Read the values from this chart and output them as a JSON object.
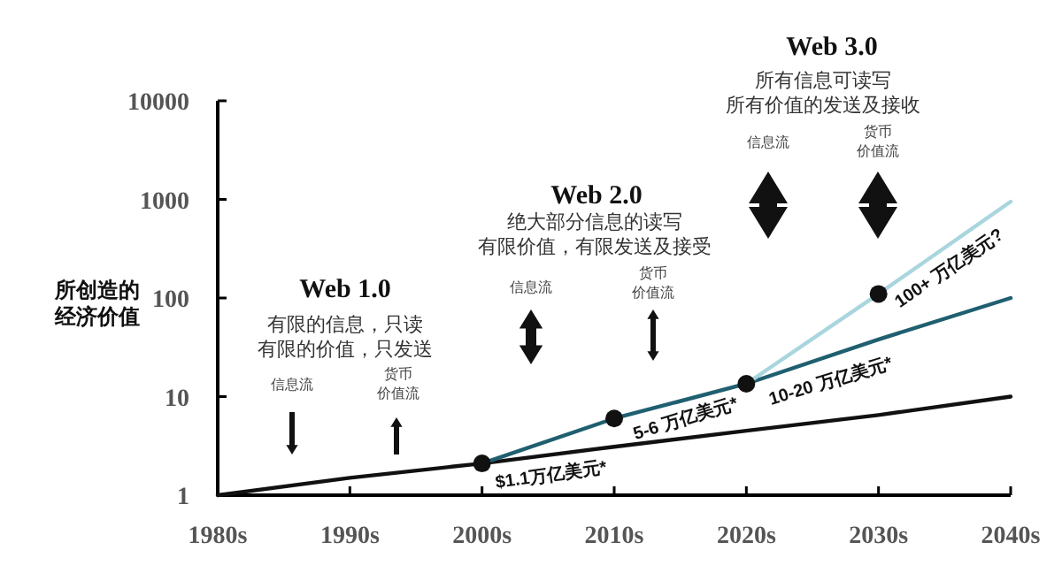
{
  "chart_data": {
    "type": "line",
    "ylabel": "所创造的经济价值",
    "categories": [
      "1980s",
      "1990s",
      "2000s",
      "2010s",
      "2020s",
      "2030s",
      "2040s"
    ],
    "log": true,
    "ylim": [
      1,
      10000
    ],
    "yticks": [
      1,
      10,
      100,
      1000,
      10000
    ],
    "series": [
      {
        "color": "#111111",
        "values": [
          1,
          1.5,
          2.1,
          3.1,
          4.5,
          6.5,
          10
        ]
      },
      {
        "color": "#1f5f70",
        "values": [
          null,
          null,
          2.1,
          6,
          13.5,
          38,
          100
        ]
      },
      {
        "color": "#a9d6de",
        "values": [
          null,
          null,
          null,
          null,
          13.5,
          110,
          950
        ]
      },
      {
        "type": "scatter",
        "color": "#111111",
        "marker": "circle",
        "values": [
          null,
          null,
          2.1,
          6,
          13.5,
          110,
          null
        ]
      }
    ],
    "annotations": [
      "Web 1.0",
      "有限的信息，只读",
      "有限的价值，只发送",
      "信息流",
      "货币",
      "价值流",
      "Web 2.0",
      "绝大部分信息的读写",
      "有限价值，有限发送及接受",
      "信息流",
      "货币",
      "价值流",
      "Web 3.0",
      "所有信息可读写",
      "所有价值的发送及接收",
      "信息流",
      "货币",
      "价值流",
      {
        "text": "$1.1万亿美元*",
        "x": "2000s",
        "y": 2.1
      },
      {
        "text": "5-6 万亿美元*",
        "x": "2010s",
        "y": 6
      },
      {
        "text": "10-20 万亿美元*",
        "x": "2020s",
        "y": 13.5
      },
      {
        "text": "100+ 万亿美元?",
        "x": "2030s",
        "y": 110
      }
    ]
  }
}
